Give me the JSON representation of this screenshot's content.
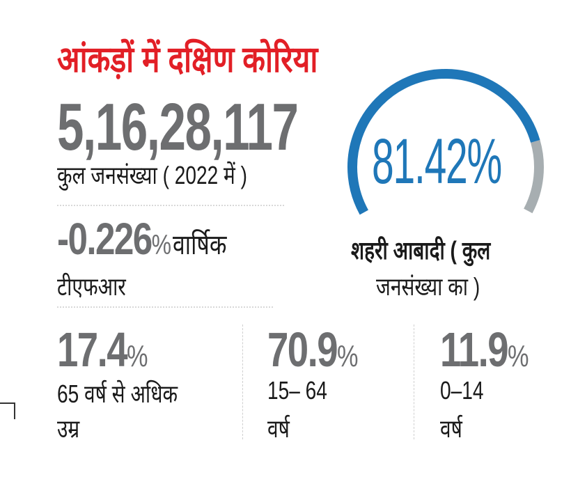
{
  "title": "आंकड़ों में दक्षिण कोरिया",
  "population": {
    "value": "5,16,28,117",
    "label": "कुल जनसंख्या ( 2022 में )"
  },
  "tfr": {
    "value": "-0.226",
    "unit": "%",
    "label_line1": "वार्षिक",
    "label_line2": "टीएफआर"
  },
  "urban": {
    "value_text": "81.42%",
    "value": 81.42,
    "label_line1": "शहरी आबादी ( कुल",
    "label_line2": "जनसंख्या का )"
  },
  "age_groups": [
    {
      "value": "17.4",
      "unit": "%",
      "line1": "65 वर्ष से अधिक",
      "line2": "उम्र"
    },
    {
      "value": "70.9",
      "unit": "%",
      "line1": "15– 64",
      "line2": "वर्ष"
    },
    {
      "value": "11.9",
      "unit": "%",
      "line1": "0–14",
      "line2": "वर्ष"
    }
  ],
  "colors": {
    "title": "#e21f26",
    "gauge_fill": "#1f77b8",
    "gauge_track": "#a7aeb1",
    "number": "#6d6e70"
  }
}
